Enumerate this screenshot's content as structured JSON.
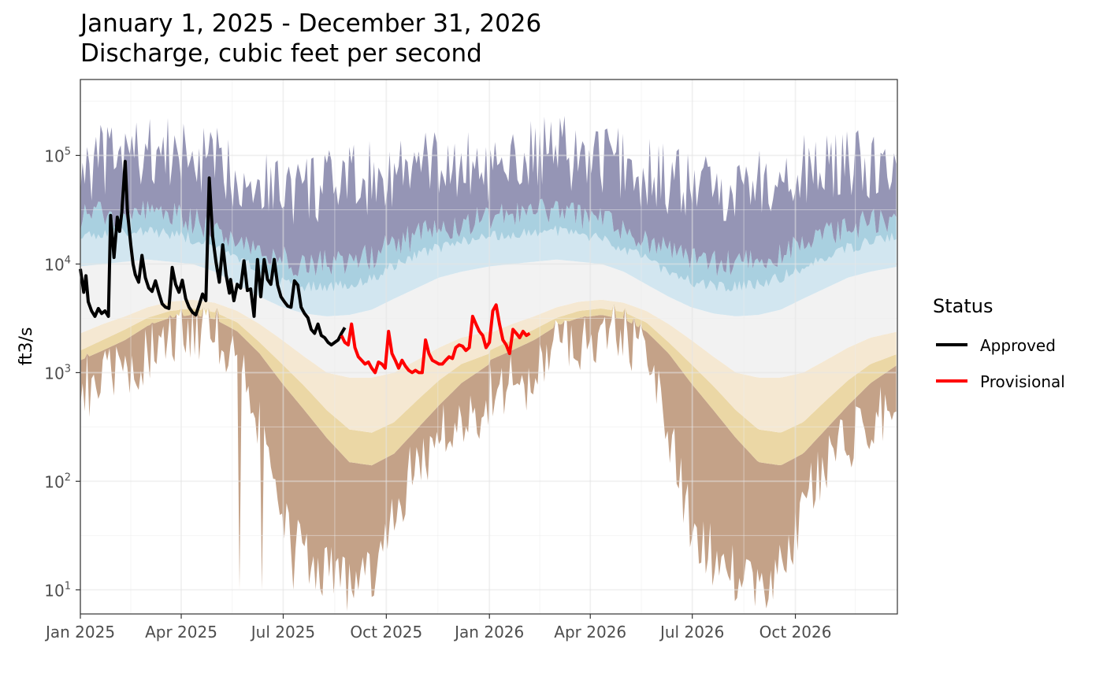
{
  "chart_data": {
    "type": "line",
    "title_lines": [
      "January 1, 2025 - December 31, 2026",
      "Discharge, cubic feet per second"
    ],
    "xlabel": "",
    "ylabel": "ft3/s",
    "y_scale": "log10",
    "ylim": [
      6,
      500000
    ],
    "xlim": [
      "2025-01-01",
      "2026-12-31"
    ],
    "x_ticks": [
      {
        "date": "2025-01-01",
        "label": "Jan 2025"
      },
      {
        "date": "2025-04-01",
        "label": "Apr 2025"
      },
      {
        "date": "2025-07-01",
        "label": "Jul 2025"
      },
      {
        "date": "2025-10-01",
        "label": "Oct 2025"
      },
      {
        "date": "2026-01-01",
        "label": "Jan 2026"
      },
      {
        "date": "2026-04-01",
        "label": "Apr 2026"
      },
      {
        "date": "2026-07-01",
        "label": "Jul 2026"
      },
      {
        "date": "2026-10-01",
        "label": "Oct 2026"
      }
    ],
    "y_ticks": [
      {
        "value": 10,
        "base": "10",
        "exp": "1"
      },
      {
        "value": 100,
        "base": "10",
        "exp": "2"
      },
      {
        "value": 1000,
        "base": "10",
        "exp": "3"
      },
      {
        "value": 10000,
        "base": "10",
        "exp": "4"
      },
      {
        "value": 100000,
        "base": "10",
        "exp": "5"
      }
    ],
    "background_bands": {
      "description": "Historical daily flow percentile envelopes (min, 5th, 10th, 25th, 75th, 90th, 95th, max), repeated for each year",
      "colors": [
        "#c4a288",
        "#ebd7a5",
        "#f5e8d2",
        "#f2f2f2",
        "#d2e6f0",
        "#a9d0e0",
        "#9595b5"
      ],
      "day_of_year": [
        0,
        20,
        40,
        60,
        80,
        100,
        120,
        140,
        160,
        180,
        200,
        220,
        240,
        260,
        280,
        300,
        320,
        340,
        365
      ],
      "p_min": [
        800,
        900,
        1000,
        1800,
        2200,
        2600,
        2400,
        1600,
        300,
        40,
        20,
        15,
        12,
        15,
        60,
        150,
        250,
        400,
        600
      ],
      "p05": [
        1300,
        1600,
        2000,
        2700,
        3200,
        3400,
        3100,
        2400,
        1500,
        800,
        450,
        250,
        150,
        140,
        180,
        300,
        500,
        800,
        1200
      ],
      "p10": [
        1600,
        2000,
        2500,
        3200,
        3700,
        3900,
        3600,
        2900,
        1900,
        1200,
        750,
        450,
        300,
        280,
        350,
        550,
        850,
        1200,
        1500
      ],
      "p25": [
        2300,
        2800,
        3300,
        4000,
        4500,
        4700,
        4400,
        3700,
        2800,
        2000,
        1400,
        1000,
        900,
        900,
        1000,
        1300,
        1700,
        2100,
        2400
      ],
      "p75": [
        9500,
        10000,
        10500,
        11000,
        10500,
        10000,
        8500,
        6500,
        5000,
        4000,
        3500,
        3300,
        3400,
        3800,
        4800,
        6000,
        7500,
        8500,
        9500
      ],
      "p90": [
        18000,
        19000,
        20000,
        20000,
        19000,
        17000,
        14000,
        11000,
        8500,
        7000,
        6300,
        6100,
        6500,
        7500,
        9500,
        12000,
        14000,
        16000,
        18000
      ],
      "p95": [
        27000,
        29000,
        30000,
        30000,
        28000,
        25000,
        21000,
        17000,
        13000,
        11000,
        10000,
        10000,
        10500,
        12000,
        15000,
        18000,
        21000,
        24000,
        27000
      ],
      "p_max": [
        60000,
        70000,
        80000,
        85000,
        80000,
        75000,
        65000,
        55000,
        45000,
        40000,
        38000,
        40000,
        45000,
        50000,
        55000,
        60000,
        65000,
        60000,
        60000
      ]
    },
    "series": [
      {
        "name": "Approved",
        "color": "#000000",
        "dates": [
          "2025-01-01",
          "2025-01-04",
          "2025-01-06",
          "2025-01-08",
          "2025-01-11",
          "2025-01-14",
          "2025-01-17",
          "2025-01-20",
          "2025-01-23",
          "2025-01-26",
          "2025-01-28",
          "2025-01-31",
          "2025-02-03",
          "2025-02-05",
          "2025-02-07",
          "2025-02-10",
          "2025-02-12",
          "2025-02-15",
          "2025-02-17",
          "2025-02-19",
          "2025-02-22",
          "2025-02-25",
          "2025-02-28",
          "2025-03-03",
          "2025-03-06",
          "2025-03-09",
          "2025-03-12",
          "2025-03-15",
          "2025-03-18",
          "2025-03-21",
          "2025-03-24",
          "2025-03-27",
          "2025-03-30",
          "2025-04-02",
          "2025-04-05",
          "2025-04-08",
          "2025-04-11",
          "2025-04-14",
          "2025-04-17",
          "2025-04-20",
          "2025-04-23",
          "2025-04-26",
          "2025-04-29",
          "2025-05-02",
          "2025-05-05",
          "2025-05-08",
          "2025-05-11",
          "2025-05-14",
          "2025-05-15",
          "2025-05-18",
          "2025-05-21",
          "2025-05-24",
          "2025-05-27",
          "2025-05-30",
          "2025-06-02",
          "2025-06-05",
          "2025-06-08",
          "2025-06-11",
          "2025-06-14",
          "2025-06-17",
          "2025-06-20",
          "2025-06-23",
          "2025-06-26",
          "2025-06-29",
          "2025-07-02",
          "2025-07-05",
          "2025-07-08",
          "2025-07-11",
          "2025-07-14",
          "2025-07-17",
          "2025-07-20",
          "2025-07-23",
          "2025-07-26",
          "2025-07-29",
          "2025-08-01",
          "2025-08-04",
          "2025-08-07",
          "2025-08-10",
          "2025-08-13",
          "2025-08-16",
          "2025-08-19",
          "2025-08-22",
          "2025-08-25"
        ],
        "values": [
          9000,
          5500,
          7800,
          4500,
          3700,
          3300,
          3900,
          3500,
          3700,
          3300,
          28000,
          11500,
          27000,
          20000,
          30000,
          88000,
          31000,
          15000,
          10000,
          8000,
          6800,
          12000,
          7500,
          6000,
          5600,
          7000,
          5400,
          4300,
          4000,
          3900,
          9300,
          6500,
          5500,
          7100,
          4800,
          4000,
          3600,
          3400,
          4200,
          5300,
          4600,
          62000,
          18000,
          10500,
          6800,
          15000,
          8000,
          5400,
          7200,
          4600,
          6500,
          6000,
          10700,
          5700,
          5900,
          3300,
          11000,
          5000,
          11000,
          7200,
          6500,
          11000,
          6400,
          5000,
          4500,
          4100,
          4000,
          7000,
          6400,
          4000,
          3500,
          3200,
          2500,
          2300,
          2800,
          2200,
          2100,
          1900,
          1800,
          1900,
          2000,
          2300,
          2600
        ]
      },
      {
        "name": "Provisional",
        "color": "#ff0000",
        "dates": [
          "2025-08-22",
          "2025-08-25",
          "2025-08-28",
          "2025-08-31",
          "2025-09-03",
          "2025-09-06",
          "2025-09-09",
          "2025-09-12",
          "2025-09-15",
          "2025-09-18",
          "2025-09-21",
          "2025-09-24",
          "2025-09-27",
          "2025-09-30",
          "2025-10-03",
          "2025-10-06",
          "2025-10-09",
          "2025-10-12",
          "2025-10-15",
          "2025-10-18",
          "2025-10-21",
          "2025-10-24",
          "2025-10-27",
          "2025-10-30",
          "2025-11-02",
          "2025-11-05",
          "2025-11-08",
          "2025-11-11",
          "2025-11-14",
          "2025-11-17",
          "2025-11-20",
          "2025-11-23",
          "2025-11-26",
          "2025-11-29",
          "2025-12-02",
          "2025-12-05",
          "2025-12-08",
          "2025-12-11",
          "2025-12-14",
          "2025-12-17",
          "2025-12-20",
          "2025-12-23",
          "2025-12-26",
          "2025-12-29",
          "2026-01-01",
          "2026-01-04",
          "2026-01-07",
          "2026-01-10",
          "2026-01-13",
          "2026-01-16",
          "2026-01-19",
          "2026-01-22",
          "2026-01-25",
          "2026-01-28",
          "2026-01-31",
          "2026-02-03",
          "2026-02-06"
        ],
        "values": [
          2200,
          1900,
          1800,
          2800,
          1700,
          1400,
          1300,
          1200,
          1250,
          1100,
          1000,
          1250,
          1200,
          1100,
          2400,
          1500,
          1300,
          1100,
          1300,
          1150,
          1050,
          1000,
          1050,
          1000,
          1000,
          2000,
          1500,
          1300,
          1250,
          1200,
          1200,
          1300,
          1400,
          1350,
          1700,
          1800,
          1750,
          1600,
          1700,
          3300,
          2800,
          2400,
          2200,
          1700,
          1900,
          3700,
          4200,
          2800,
          2000,
          1800,
          1500,
          2500,
          2300,
          2100,
          2400,
          2200,
          2300
        ]
      }
    ],
    "legend": {
      "title": "Status",
      "position": "right",
      "entries": [
        {
          "label": "Approved",
          "color": "#000000"
        },
        {
          "label": "Provisional",
          "color": "#ff0000"
        }
      ]
    },
    "grid": true
  }
}
